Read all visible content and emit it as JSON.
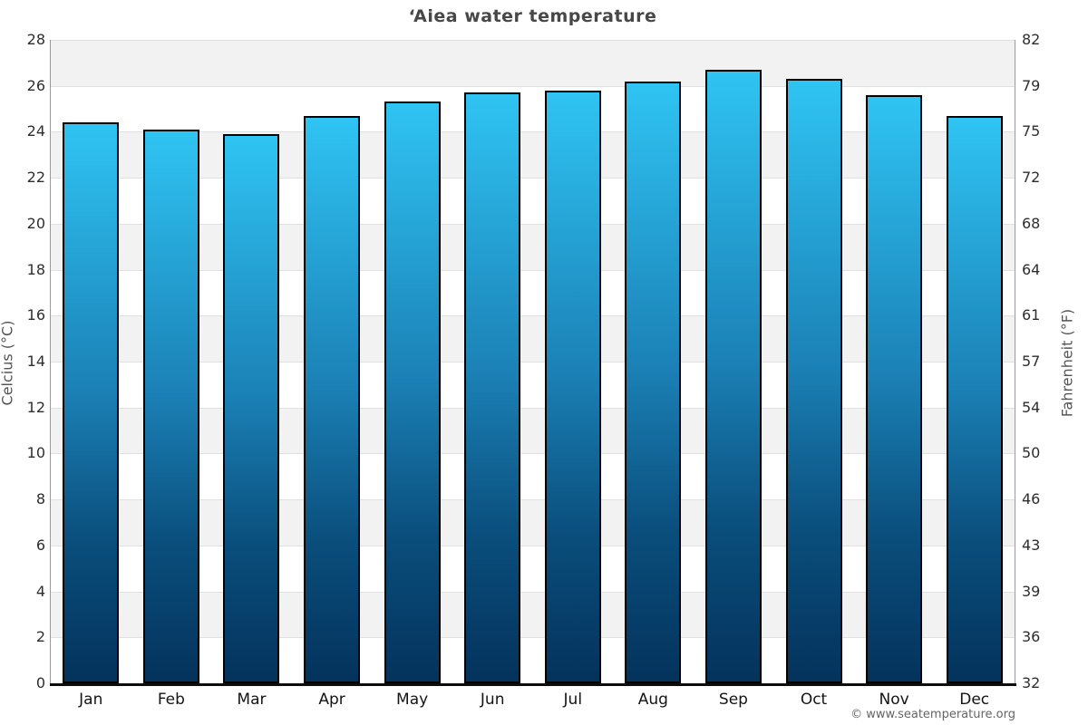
{
  "page": {
    "copyright": "© www.seatemperature.org"
  },
  "chart_data": {
    "type": "bar",
    "title": "‘Aiea water temperature",
    "categories": [
      "Jan",
      "Feb",
      "Mar",
      "Apr",
      "May",
      "Jun",
      "Jul",
      "Aug",
      "Sep",
      "Oct",
      "Nov",
      "Dec"
    ],
    "values": [
      24.4,
      24.1,
      23.9,
      24.7,
      25.3,
      25.7,
      25.8,
      26.2,
      26.7,
      26.3,
      25.6,
      24.7
    ],
    "unit": "°C",
    "left_axis": {
      "label": "Celcius (°C)",
      "ticks": [
        28,
        26,
        24,
        22,
        20,
        18,
        16,
        14,
        12,
        10,
        8,
        6,
        4,
        2,
        0
      ],
      "range": [
        0,
        28
      ]
    },
    "right_axis": {
      "label": "Fahrenheit (°F)",
      "ticks": [
        82,
        79,
        75,
        72,
        68,
        64,
        61,
        57,
        54,
        50,
        46,
        43,
        39,
        36,
        32
      ],
      "note": "each Fahrenheit tick aligns with the Celsius gridline at the same height"
    },
    "legend": "none",
    "grid": "horizontal gridlines every 2°C with alternating background bands",
    "colors": {
      "bar_top": "#2fc4f3",
      "bar_mid": "#1b80b5",
      "bar_bottom": "#04335c",
      "bar_border": "#000000",
      "band_gray": "#f2f2f2",
      "band_white": "#ffffff",
      "gridline": "#e0e0e0",
      "side_axis_line": "#9a9a9a",
      "bottom_axis_line": "#0d0d0d",
      "title_text": "#474747"
    }
  }
}
